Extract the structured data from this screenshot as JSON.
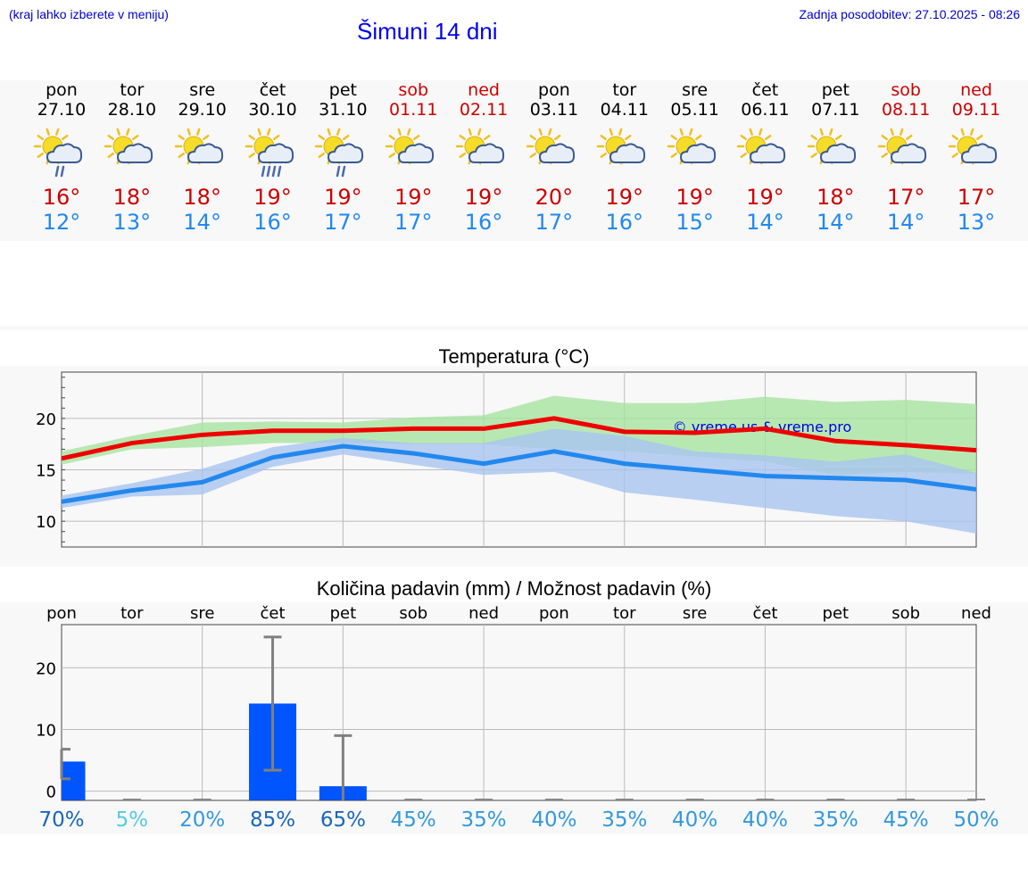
{
  "header": {
    "hint": "(kraj lahko izberete v meniju)",
    "title": "Šimuni 14 dni",
    "updated": "Zadnja posodobitev: 27.10.2025 - 08:26"
  },
  "colors": {
    "weekday": "#000000",
    "weekend": "#cc0000",
    "tmax": "#cc0000",
    "tmin": "#2288ee",
    "max_line": "#ee0000",
    "min_line": "#2288ee",
    "max_band": "#a8e4a0",
    "min_band": "#a8c4f0",
    "bar": "#0055ff",
    "error_bar": "#808080"
  },
  "days": [
    {
      "name": "pon",
      "date": "27.10",
      "weekend": false,
      "icon": "sun-cloud-rain-icon",
      "tmax": "16°",
      "tmin": "12°"
    },
    {
      "name": "tor",
      "date": "28.10",
      "weekend": false,
      "icon": "sun-cloud-icon",
      "tmax": "18°",
      "tmin": "13°"
    },
    {
      "name": "sre",
      "date": "29.10",
      "weekend": false,
      "icon": "sun-cloud-icon",
      "tmax": "18°",
      "tmin": "14°"
    },
    {
      "name": "čet",
      "date": "30.10",
      "weekend": false,
      "icon": "sun-cloud-heavy-rain-icon",
      "tmax": "19°",
      "tmin": "16°"
    },
    {
      "name": "pet",
      "date": "31.10",
      "weekend": false,
      "icon": "sun-cloud-rain-icon",
      "tmax": "19°",
      "tmin": "17°"
    },
    {
      "name": "sob",
      "date": "01.11",
      "weekend": true,
      "icon": "sun-cloud-icon",
      "tmax": "19°",
      "tmin": "17°"
    },
    {
      "name": "ned",
      "date": "02.11",
      "weekend": true,
      "icon": "sun-cloud-icon",
      "tmax": "19°",
      "tmin": "16°"
    },
    {
      "name": "pon",
      "date": "03.11",
      "weekend": false,
      "icon": "sun-cloud-icon",
      "tmax": "20°",
      "tmin": "17°"
    },
    {
      "name": "tor",
      "date": "04.11",
      "weekend": false,
      "icon": "sun-cloud-icon",
      "tmax": "19°",
      "tmin": "16°"
    },
    {
      "name": "sre",
      "date": "05.11",
      "weekend": false,
      "icon": "sun-cloud-icon",
      "tmax": "19°",
      "tmin": "15°"
    },
    {
      "name": "čet",
      "date": "06.11",
      "weekend": false,
      "icon": "sun-cloud-icon",
      "tmax": "19°",
      "tmin": "14°"
    },
    {
      "name": "pet",
      "date": "07.11",
      "weekend": false,
      "icon": "sun-cloud-icon",
      "tmax": "18°",
      "tmin": "14°"
    },
    {
      "name": "sob",
      "date": "08.11",
      "weekend": true,
      "icon": "sun-cloud-icon",
      "tmax": "17°",
      "tmin": "14°"
    },
    {
      "name": "ned",
      "date": "09.11",
      "weekend": true,
      "icon": "sun-cloud-icon",
      "tmax": "17°",
      "tmin": "13°"
    }
  ],
  "chart_data": [
    {
      "type": "line",
      "title": "Temperatura (°C)",
      "watermark": "© vreme.us & vreme.pro",
      "x": [
        0,
        1,
        2,
        3,
        4,
        5,
        6,
        7,
        8,
        9,
        10,
        11,
        12,
        13
      ],
      "ylim": [
        7.5,
        24.5
      ],
      "yticks": [
        10,
        15,
        20
      ],
      "grid": true,
      "series": [
        {
          "values": [
            16.1,
            17.6,
            18.4,
            18.8,
            18.8,
            19.0,
            19.0,
            20.0,
            18.7,
            18.6,
            19.0,
            17.8,
            17.4,
            16.9
          ],
          "band_low": [
            15.5,
            17.0,
            17.2,
            17.6,
            17.6,
            17.5,
            17.5,
            17.0,
            16.8,
            16.3,
            15.8,
            14.5,
            14.8,
            14.6
          ],
          "band_high": [
            16.8,
            18.3,
            19.6,
            19.7,
            19.6,
            20.1,
            20.3,
            22.2,
            21.5,
            21.5,
            22.1,
            21.6,
            21.8,
            21.4
          ]
        },
        {
          "values": [
            11.9,
            13.0,
            13.8,
            16.2,
            17.3,
            16.6,
            15.6,
            16.8,
            15.6,
            15.0,
            14.4,
            14.2,
            14.0,
            13.1
          ],
          "band_low": [
            11.3,
            12.4,
            12.6,
            15.3,
            16.5,
            15.5,
            14.5,
            14.8,
            12.8,
            12.1,
            11.3,
            10.5,
            10.0,
            8.8
          ],
          "band_high": [
            12.5,
            13.7,
            15.1,
            17.2,
            18.1,
            17.6,
            17.6,
            19.0,
            18.3,
            16.8,
            16.4,
            15.8,
            16.5,
            14.7
          ]
        }
      ]
    },
    {
      "type": "bar",
      "title": "Količina padavin (mm) / Možnost padavin (%)",
      "categories": [
        "pon",
        "tor",
        "sre",
        "čet",
        "pet",
        "sob",
        "ned",
        "pon",
        "tor",
        "sre",
        "čet",
        "pet",
        "sob",
        "ned"
      ],
      "values": [
        4.8,
        0,
        0,
        14.2,
        0.8,
        0,
        0,
        0,
        0,
        0,
        0,
        0,
        0,
        0
      ],
      "error_low": [
        2.0,
        0,
        0,
        3.4,
        0,
        0,
        0,
        0,
        0,
        0,
        0,
        0,
        0,
        0
      ],
      "error_high": [
        6.8,
        0,
        0,
        25.0,
        9.0,
        0,
        0,
        0,
        0,
        0,
        0,
        0,
        0,
        0
      ],
      "probability": [
        "70%",
        "5%",
        "20%",
        "85%",
        "65%",
        "45%",
        "35%",
        "40%",
        "35%",
        "40%",
        "40%",
        "35%",
        "45%",
        "50%"
      ],
      "probability_colors": [
        "#1a66bb",
        "#55ccdd",
        "#3399dd",
        "#1a66bb",
        "#1a66bb",
        "#3399dd",
        "#3399dd",
        "#3399dd",
        "#3399dd",
        "#3399dd",
        "#3399dd",
        "#3399dd",
        "#3399dd",
        "#3399dd"
      ],
      "ylim": [
        -1.5,
        27
      ],
      "yticks": [
        0,
        10,
        20
      ],
      "grid": true
    }
  ]
}
